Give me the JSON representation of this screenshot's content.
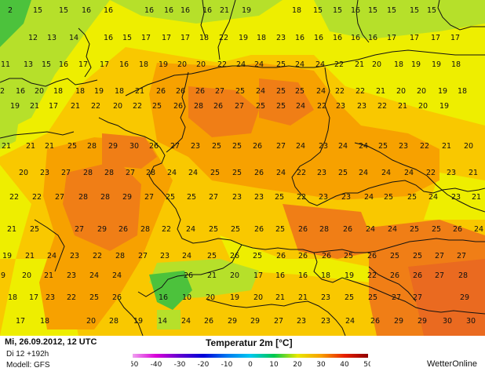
{
  "map": {
    "title": "Temperatur 2m [°C]",
    "date": "Mi, 26.09.2012, 12 UTC",
    "run": "Di 12 +192h",
    "model": "Modell: GFS",
    "brand": "WetterOnline",
    "colors": {
      "green": "#4cc23c",
      "yellow_green": "#b6e02a",
      "yellow": "#eeee00",
      "light_orange": "#f9c800",
      "orange": "#f7a100",
      "deep_orange": "#f07e16",
      "red_orange": "#ea6a20",
      "border": "#111111"
    },
    "legend": {
      "ticks": [
        "-50",
        "-40",
        "-30",
        "-20",
        "-10",
        "0",
        "10",
        "20",
        "30",
        "40",
        "50"
      ],
      "colors": [
        "#f0a0f0",
        "#d800d8",
        "#6000d0",
        "#0000d8",
        "#0078f0",
        "#00c8f0",
        "#00c850",
        "#e8e800",
        "#f8a000",
        "#e82000",
        "#900000"
      ]
    },
    "values": [
      [
        "2",
        "13"
      ],
      [
        "15",
        "48"
      ],
      [
        "15",
        "81"
      ],
      [
        "16",
        "110"
      ],
      [
        "16",
        "138"
      ],
      [
        "16",
        "190"
      ],
      [
        "16",
        "215"
      ],
      [
        "16",
        "236"
      ],
      [
        "16",
        "264"
      ],
      [
        "21",
        "286"
      ],
      [
        "19",
        "314"
      ],
      [
        "18",
        "378"
      ],
      [
        "15",
        "405"
      ],
      [
        "15",
        "430"
      ],
      [
        "16",
        "453"
      ],
      [
        "15",
        "475"
      ],
      [
        "15",
        "499"
      ],
      [
        "15",
        "528"
      ],
      [
        "15",
        "550"
      ],
      [
        "12",
        "42"
      ],
      [
        "13",
        "66"
      ],
      [
        "14",
        "94"
      ],
      [
        "16",
        "138"
      ],
      [
        "15",
        "162"
      ],
      [
        "17",
        "186"
      ],
      [
        "17",
        "212"
      ],
      [
        "17",
        "236"
      ],
      [
        "18",
        "260"
      ],
      [
        "22",
        "285"
      ],
      [
        "19",
        "310"
      ],
      [
        "18",
        "333"
      ],
      [
        "23",
        "358"
      ],
      [
        "16",
        "382"
      ],
      [
        "16",
        "406"
      ],
      [
        "16",
        "430"
      ],
      [
        "16",
        "453"
      ],
      [
        "16",
        "475"
      ],
      [
        "17",
        "499"
      ],
      [
        "17",
        "528"
      ],
      [
        "17",
        "555"
      ],
      [
        "17",
        "580"
      ],
      [
        "11",
        "7"
      ],
      [
        "13",
        "36"
      ],
      [
        "15",
        "59"
      ],
      [
        "16",
        "81"
      ],
      [
        "17",
        "106"
      ],
      [
        "17",
        "133"
      ],
      [
        "16",
        "158"
      ],
      [
        "18",
        "183"
      ],
      [
        "19",
        "208"
      ],
      [
        "20",
        "232"
      ],
      [
        "20",
        "256"
      ],
      [
        "22",
        "283"
      ],
      [
        "24",
        "307"
      ],
      [
        "24",
        "330"
      ],
      [
        "25",
        "358"
      ],
      [
        "24",
        "382"
      ],
      [
        "24",
        "408"
      ],
      [
        "22",
        "432"
      ],
      [
        "21",
        "458"
      ],
      [
        "20",
        "480"
      ],
      [
        "18",
        "508"
      ],
      [
        "19",
        "530"
      ],
      [
        "19",
        "556"
      ],
      [
        "18",
        "581"
      ],
      [
        "2",
        "3"
      ],
      [
        "16",
        "26"
      ],
      [
        "20",
        "50"
      ],
      [
        "18",
        "74"
      ],
      [
        "18",
        "102"
      ],
      [
        "19",
        "126"
      ],
      [
        "18",
        "152"
      ],
      [
        "21",
        "178"
      ],
      [
        "26",
        "205"
      ],
      [
        "26",
        "230"
      ],
      [
        "26",
        "255"
      ],
      [
        "27",
        "280"
      ],
      [
        "25",
        "306"
      ],
      [
        "24",
        "332"
      ],
      [
        "25",
        "358"
      ],
      [
        "25",
        "382"
      ],
      [
        "24",
        "409"
      ],
      [
        "22",
        "433"
      ],
      [
        "22",
        "459"
      ],
      [
        "21",
        "485"
      ],
      [
        "20",
        "511"
      ],
      [
        "20",
        "537"
      ],
      [
        "19",
        "564"
      ],
      [
        "18",
        "589"
      ],
      [
        "19",
        "19"
      ],
      [
        "21",
        "44"
      ],
      [
        "17",
        "68"
      ],
      [
        "21",
        "96"
      ],
      [
        "22",
        "122"
      ],
      [
        "20",
        "150"
      ],
      [
        "22",
        "175"
      ],
      [
        "25",
        "200"
      ],
      [
        "26",
        "227"
      ],
      [
        "28",
        "253"
      ],
      [
        "26",
        "278"
      ],
      [
        "27",
        "305"
      ],
      [
        "25",
        "332"
      ],
      [
        "25",
        "358"
      ],
      [
        "24",
        "383"
      ],
      [
        "22",
        "410"
      ],
      [
        "23",
        "434"
      ],
      [
        "23",
        "461"
      ],
      [
        "22",
        "487"
      ],
      [
        "21",
        "513"
      ],
      [
        "20",
        "539"
      ],
      [
        "19",
        "566"
      ],
      [
        "21",
        "8"
      ],
      [
        "21",
        "39"
      ],
      [
        "21",
        "63"
      ],
      [
        "25",
        "92"
      ],
      [
        "28",
        "117"
      ],
      [
        "29",
        "144"
      ],
      [
        "30",
        "171"
      ],
      [
        "26",
        "196"
      ],
      [
        "27",
        "223"
      ],
      [
        "23",
        "249"
      ],
      [
        "25",
        "276"
      ],
      [
        "25",
        "302"
      ],
      [
        "26",
        "328"
      ],
      [
        "27",
        "358"
      ],
      [
        "24",
        "383"
      ],
      [
        "23",
        "412"
      ],
      [
        "24",
        "437"
      ],
      [
        "24",
        "463"
      ],
      [
        "25",
        "488"
      ],
      [
        "23",
        "514"
      ],
      [
        "22",
        "541"
      ],
      [
        "21",
        "569"
      ],
      [
        "20",
        "597"
      ],
      [
        "20",
        "30"
      ],
      [
        "23",
        "57"
      ],
      [
        "27",
        "84"
      ],
      [
        "28",
        "112"
      ],
      [
        "28",
        "139"
      ],
      [
        "27",
        "166"
      ],
      [
        "28",
        "192"
      ],
      [
        "24",
        "219"
      ],
      [
        "24",
        "246"
      ],
      [
        "25",
        "274"
      ],
      [
        "25",
        "302"
      ],
      [
        "26",
        "330"
      ],
      [
        "24",
        "358"
      ],
      [
        "22",
        "384"
      ],
      [
        "23",
        "410"
      ],
      [
        "25",
        "437"
      ],
      [
        "24",
        "463"
      ],
      [
        "24",
        "492"
      ],
      [
        "24",
        "521"
      ],
      [
        "22",
        "549"
      ],
      [
        "23",
        "575"
      ],
      [
        "21",
        "603"
      ],
      [
        "22",
        "18"
      ],
      [
        "22",
        "47"
      ],
      [
        "27",
        "76"
      ],
      [
        "28",
        "106"
      ],
      [
        "28",
        "134"
      ],
      [
        "29",
        "162"
      ],
      [
        "27",
        "190"
      ],
      [
        "25",
        "217"
      ],
      [
        "25",
        "244"
      ],
      [
        "27",
        "272"
      ],
      [
        "23",
        "302"
      ],
      [
        "23",
        "330"
      ],
      [
        "25",
        "356"
      ],
      [
        "22",
        "384"
      ],
      [
        "23",
        "412"
      ],
      [
        "23",
        "441"
      ],
      [
        "24",
        "470"
      ],
      [
        "25",
        "495"
      ],
      [
        "25",
        "525"
      ],
      [
        "24",
        "552"
      ],
      [
        "23",
        "581"
      ],
      [
        "21",
        "607"
      ],
      [
        "21",
        "15"
      ],
      [
        "25",
        "44"
      ],
      [
        "27",
        "101"
      ],
      [
        "29",
        "130"
      ],
      [
        "26",
        "157"
      ],
      [
        "28",
        "185"
      ],
      [
        "22",
        "212"
      ],
      [
        "24",
        "243"
      ],
      [
        "25",
        "272"
      ],
      [
        "25",
        "300"
      ],
      [
        "26",
        "330"
      ],
      [
        "25",
        "357"
      ],
      [
        "26",
        "386"
      ],
      [
        "28",
        "413"
      ],
      [
        "26",
        "443"
      ],
      [
        "24",
        "472"
      ],
      [
        "24",
        "500"
      ],
      [
        "25",
        "528"
      ],
      [
        "25",
        "556"
      ],
      [
        "26",
        "583"
      ],
      [
        "24",
        "610"
      ],
      [
        "19",
        "9"
      ],
      [
        "21",
        "38"
      ],
      [
        "24",
        "66"
      ],
      [
        "23",
        "95"
      ],
      [
        "22",
        "124"
      ],
      [
        "28",
        "153"
      ],
      [
        "27",
        "182"
      ],
      [
        "23",
        "210"
      ],
      [
        "24",
        "238"
      ],
      [
        "25",
        "270"
      ],
      [
        "26",
        "299"
      ],
      [
        "25",
        "328"
      ],
      [
        "26",
        "358"
      ],
      [
        "26",
        "386"
      ],
      [
        "26",
        "416"
      ],
      [
        "25",
        "444"
      ],
      [
        "26",
        "474"
      ],
      [
        "25",
        "503"
      ],
      [
        "25",
        "532"
      ],
      [
        "27",
        "560"
      ],
      [
        "27",
        "588"
      ],
      [
        "9",
        "4"
      ],
      [
        "20",
        "34"
      ],
      [
        "21",
        "62"
      ],
      [
        "23",
        "91"
      ],
      [
        "24",
        "120"
      ],
      [
        "24",
        "149"
      ],
      [
        "26",
        "240"
      ],
      [
        "21",
        "270"
      ],
      [
        "20",
        "299"
      ],
      [
        "17",
        "329"
      ],
      [
        "16",
        "357"
      ],
      [
        "16",
        "386"
      ],
      [
        "18",
        "415"
      ],
      [
        "19",
        "445"
      ],
      [
        "22",
        "474"
      ],
      [
        "26",
        "503"
      ],
      [
        "26",
        "532"
      ],
      [
        "27",
        "560"
      ],
      [
        "28",
        "590"
      ],
      [
        "18",
        "16"
      ],
      [
        "17",
        "43"
      ],
      [
        "23",
        "64"
      ],
      [
        "22",
        "91"
      ],
      [
        "25",
        "120"
      ],
      [
        "26",
        "149"
      ],
      [
        "16",
        "208"
      ],
      [
        "10",
        "238"
      ],
      [
        "20",
        "268"
      ],
      [
        "19",
        "299"
      ],
      [
        "20",
        "329"
      ],
      [
        "21",
        "357"
      ],
      [
        "21",
        "386"
      ],
      [
        "23",
        "415"
      ],
      [
        "25",
        "445"
      ],
      [
        "25",
        "475"
      ],
      [
        "27",
        "505"
      ],
      [
        "27",
        "532"
      ],
      [
        "29",
        "592"
      ],
      [
        "17",
        "26"
      ],
      [
        "18",
        "57"
      ],
      [
        "20",
        "116"
      ],
      [
        "28",
        "145"
      ],
      [
        "19",
        "176"
      ],
      [
        "14",
        "207"
      ],
      [
        "24",
        "237"
      ],
      [
        "26",
        "266"
      ],
      [
        "29",
        "296"
      ],
      [
        "29",
        "325"
      ],
      [
        "27",
        "355"
      ],
      [
        "23",
        "384"
      ],
      [
        "23",
        "415"
      ],
      [
        "24",
        "446"
      ],
      [
        "26",
        "478"
      ],
      [
        "29",
        "508"
      ],
      [
        "29",
        "538"
      ],
      [
        "30",
        "570"
      ],
      [
        "30",
        "600"
      ]
    ]
  }
}
